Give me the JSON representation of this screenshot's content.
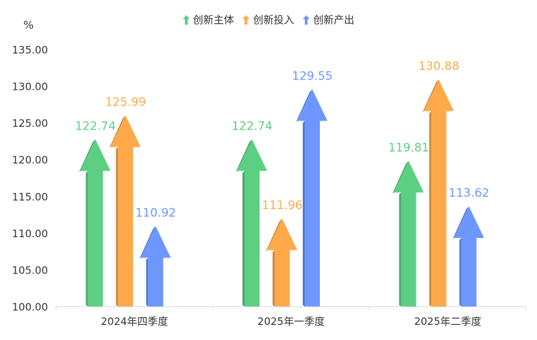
{
  "chart_data": {
    "type": "bar",
    "unit_label": "%",
    "categories": [
      "2024年四季度",
      "2025年一季度",
      "2025年二季度"
    ],
    "series": [
      {
        "name": "创新主体",
        "color": "#5ccf83",
        "values": [
          122.74,
          122.74,
          119.81
        ]
      },
      {
        "name": "创新投入",
        "color": "#ffa94a",
        "values": [
          125.99,
          111.96,
          130.88
        ]
      },
      {
        "name": "创新产出",
        "color": "#6d97ff",
        "values": [
          110.92,
          129.55,
          113.62
        ]
      }
    ],
    "ylim": [
      100,
      135
    ],
    "yticks": [
      "100.00",
      "105.00",
      "110.00",
      "115.00",
      "120.00",
      "125.00",
      "130.00",
      "135.00"
    ],
    "legend_position": "top-center",
    "marker": "arrow"
  }
}
